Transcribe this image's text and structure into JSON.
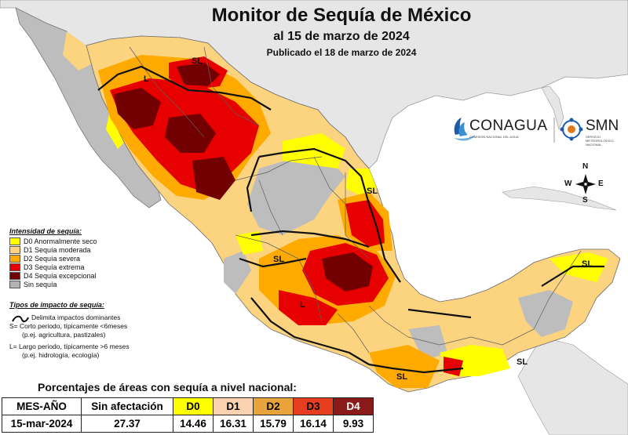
{
  "header": {
    "title": "Monitor de Sequía de México",
    "subtitle": "al 15 de marzo de 2024",
    "published": "Publicado el 18 de marzo de 2024"
  },
  "logos": {
    "conagua": "CONAGUA",
    "conagua_sub": "COMISIÓN NACIONAL DEL AGUA",
    "smn": "SMN",
    "smn_sub": "SERVICIO METEOROLÓGICO NACIONAL"
  },
  "compass": {
    "n": "N",
    "s": "S",
    "e": "E",
    "w": "W"
  },
  "map_labels": {
    "sl_north": "SL",
    "l_northwest": "L",
    "sl_northeast": "SL",
    "sl_center_small": "SL",
    "l_center": "L",
    "sl_south": "SL",
    "sl_southeast": "SL",
    "sl_yucatan": "SL"
  },
  "legend": {
    "intensity_title": "Intensidad de sequía:",
    "items": [
      {
        "label": "D0 Anormalmente seco",
        "color": "#ffff00"
      },
      {
        "label": "D1 Sequía moderada",
        "color": "#fcd37f"
      },
      {
        "label": "D2 Sequía severa",
        "color": "#ffaa00"
      },
      {
        "label": "D3 Sequía extrema",
        "color": "#e60000"
      },
      {
        "label": "D4 Sequía excepcional",
        "color": "#730000"
      },
      {
        "label": "Sin sequía",
        "color": "#b2b2b2"
      }
    ],
    "impact_title": "Tipos de impacto de sequía:",
    "impact_line": "Delimita impactos dominantes",
    "s_def": "S= Corto periodo, típicamente <6meses",
    "s_ex": "(p.ej. agricultura, pastizales)",
    "l_def": "L= Largo periodo, típicamente >6 meses",
    "l_ex": "(p.ej. hidrología, ecología)"
  },
  "table": {
    "title": "Porcentajes de áreas con sequía a nivel nacional:",
    "headers": [
      "MES-AÑO",
      "Sin afectación",
      "D0",
      "D1",
      "D2",
      "D3",
      "D4"
    ],
    "header_colors": [
      "#ffffff",
      "#ffffff",
      "#ffff00",
      "#fcd3b0",
      "#e8a33a",
      "#e63e1f",
      "#8b1a1a"
    ],
    "row": [
      "15-mar-2024",
      "27.37",
      "14.46",
      "16.31",
      "15.79",
      "16.14",
      "9.93"
    ]
  }
}
